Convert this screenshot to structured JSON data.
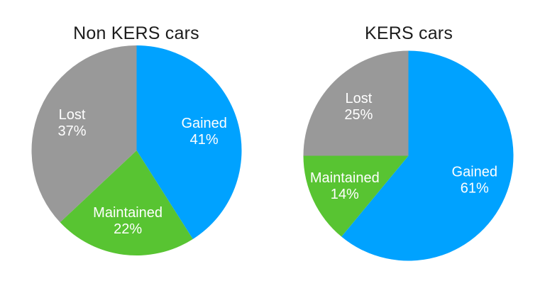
{
  "figure": {
    "background_color": "#ffffff",
    "title_text_color": "#1c1c1c",
    "label_text_color": "#ffffff"
  },
  "chart_data": [
    {
      "type": "pie",
      "title": "Non KERS cars",
      "start_angle_deg": 0,
      "direction": "clockwise",
      "legend": "none",
      "slices": [
        {
          "label": "Gained",
          "value": 41,
          "value_label": "41%",
          "color": "#00A2FF"
        },
        {
          "label": "Maintained",
          "value": 22,
          "value_label": "22%",
          "color": "#58C432"
        },
        {
          "label": "Lost",
          "value": 37,
          "value_label": "37%",
          "color": "#999999"
        }
      ]
    },
    {
      "type": "pie",
      "title": "KERS cars",
      "start_angle_deg": 0,
      "direction": "clockwise",
      "legend": "none",
      "slices": [
        {
          "label": "Gained",
          "value": 61,
          "value_label": "61%",
          "color": "#00A2FF"
        },
        {
          "label": "Maintained",
          "value": 14,
          "value_label": "14%",
          "color": "#58C432"
        },
        {
          "label": "Lost",
          "value": 25,
          "value_label": "25%",
          "color": "#999999"
        }
      ]
    }
  ]
}
